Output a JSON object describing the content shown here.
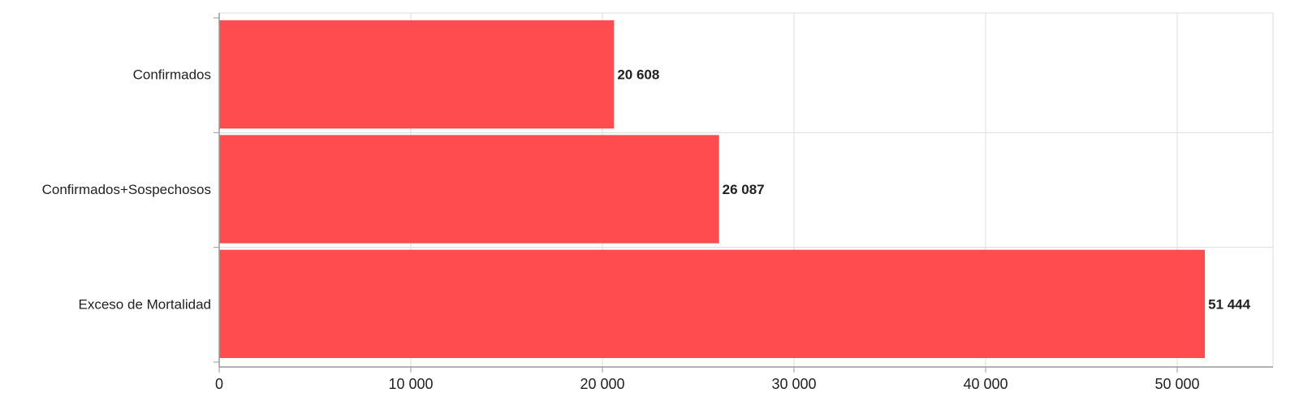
{
  "chart_data": {
    "type": "bar",
    "orientation": "horizontal",
    "categories": [
      "Confirmados",
      "Confirmados+Sospechosos",
      "Exceso de Mortalidad"
    ],
    "values": [
      20608,
      26087,
      51444
    ],
    "value_labels": [
      "20 608",
      "26 087",
      "51 444"
    ],
    "xlim": [
      0,
      55000
    ],
    "xticks": [
      0,
      10000,
      20000,
      30000,
      40000,
      50000
    ],
    "xtick_labels": [
      "0",
      "10 000",
      "20 000",
      "30 000",
      "40 000",
      "50 000"
    ],
    "title": "",
    "xlabel": "",
    "ylabel": "",
    "grid": true,
    "bar_color": "#ff4d4f",
    "grid_color": "#dddddd",
    "axis_color": "#999999"
  }
}
